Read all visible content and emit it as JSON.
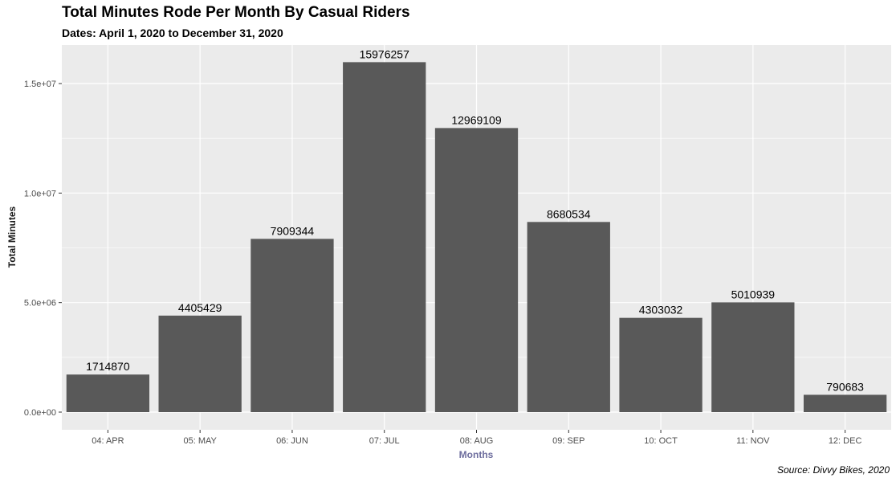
{
  "chart_data": {
    "type": "bar",
    "title": "Total Minutes Rode Per Month By Casual Riders",
    "subtitle": "Dates: April 1, 2020 to December 31, 2020",
    "caption": "Source: Divvy Bikes, 2020",
    "xlabel": "Months",
    "ylabel": "Total Minutes",
    "categories": [
      "04: APR",
      "05: MAY",
      "06: JUN",
      "07: JUL",
      "08: AUG",
      "09: SEP",
      "10: OCT",
      "11: NOV",
      "12: DEC"
    ],
    "values": [
      1714870,
      4405429,
      7909344,
      15976257,
      12969109,
      8680534,
      4303032,
      5010939,
      790683
    ],
    "data_labels": [
      "1714870",
      "4405429",
      "7909344",
      "15976257",
      "12969109",
      "8680534",
      "4303032",
      "5010939",
      "790683"
    ],
    "y_ticks": [
      0,
      5000000,
      10000000,
      15000000
    ],
    "y_tick_labels": [
      "0.0e+00",
      "5.0e+06",
      "1.0e+07",
      "1.5e+07"
    ],
    "ylim": [
      0,
      16774000
    ],
    "grid": true,
    "legend": "none",
    "colors": {
      "bar": "#595959",
      "panel": "#ebebeb",
      "grid": "#ffffff",
      "xlabel": "#6e6e9e"
    }
  }
}
